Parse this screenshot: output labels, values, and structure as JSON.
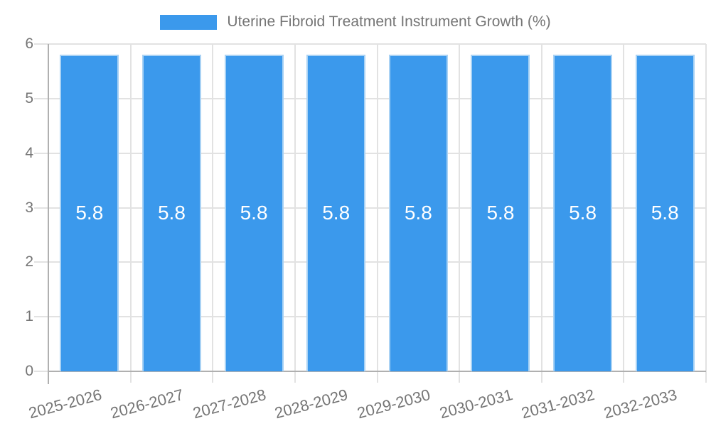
{
  "chart_data": {
    "type": "bar",
    "title": "Uterine Fibroid Treatment Instrument Growth (%)",
    "categories": [
      "2025-2026",
      "2026-2027",
      "2027-2028",
      "2028-2029",
      "2029-2030",
      "2030-2031",
      "2031-2032",
      "2032-2033"
    ],
    "series": [
      {
        "name": "Uterine Fibroid Treatment Instrument Growth (%)",
        "values": [
          5.8,
          5.8,
          5.8,
          5.8,
          5.8,
          5.8,
          5.8,
          5.8
        ]
      }
    ],
    "value_labels": [
      "5.8",
      "5.8",
      "5.8",
      "5.8",
      "5.8",
      "5.8",
      "5.8",
      "5.8"
    ],
    "xlabel": "",
    "ylabel": "",
    "ylim": [
      0,
      6
    ],
    "yticks": [
      0,
      1,
      2,
      3,
      4,
      5,
      6
    ],
    "grid": true,
    "legend_position": "top"
  },
  "colors": {
    "bar_fill": "#3b99ec",
    "bar_border": "#a9d2f4",
    "grid_line": "#e2e2e2",
    "axis_line": "#b0b0b0",
    "label_text": "#757575",
    "value_label_text": "#ffffff",
    "background": "#ffffff"
  }
}
